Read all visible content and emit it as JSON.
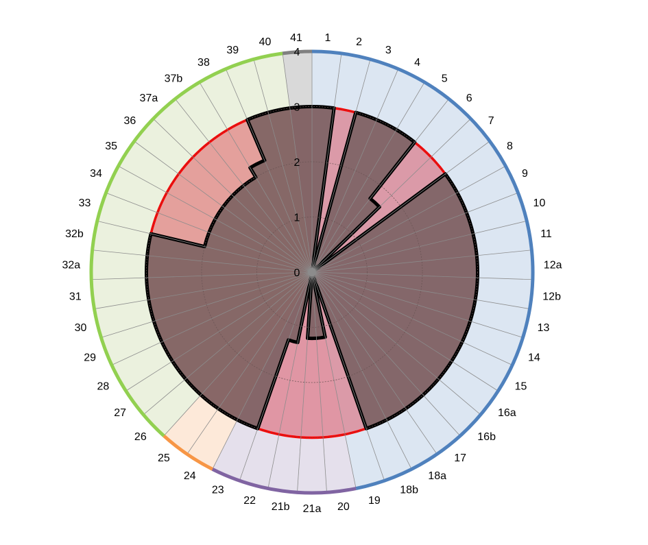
{
  "chart_data": {
    "type": "radar",
    "categories": [
      "1",
      "2",
      "3",
      "4",
      "5",
      "6",
      "7",
      "8",
      "9",
      "10",
      "11",
      "12a",
      "12b",
      "13",
      "14",
      "15",
      "16a",
      "16b",
      "17",
      "18a",
      "18b",
      "19",
      "20",
      "21a",
      "21b",
      "22",
      "23",
      "24",
      "25",
      "26",
      "27",
      "28",
      "29",
      "30",
      "31",
      "32a",
      "32b",
      "33",
      "34",
      "35",
      "36",
      "37a",
      "37b",
      "38",
      "39",
      "40",
      "41"
    ],
    "radial_ticks": [
      "0",
      "1",
      "2",
      "3",
      "4"
    ],
    "rlim": [
      0,
      4
    ],
    "sectors": [
      {
        "color": "#4f81bd",
        "fill": "#dce6f2",
        "start": "1",
        "end": "19"
      },
      {
        "color": "#8064a2",
        "fill": "#e5e0ec",
        "start": "20",
        "end": "23"
      },
      {
        "color": "#f79646",
        "fill": "#fde9d9",
        "start": "24",
        "end": "25"
      },
      {
        "color": "#92d050",
        "fill": "#ebf1de",
        "start": "26",
        "end": "40"
      },
      {
        "color": "#808080",
        "fill": "#d9d9d9",
        "start": "41",
        "end": "41"
      }
    ],
    "series": [
      {
        "color": "#ff0000",
        "fill": "rgba(218,41,58,0.40)",
        "values": [
          3,
          3,
          3,
          3,
          3,
          3,
          3,
          3,
          3,
          3,
          3,
          3,
          3,
          3,
          3,
          3,
          3,
          3,
          3,
          3,
          3,
          3,
          3,
          3,
          3,
          3,
          3,
          3,
          3,
          3,
          3,
          3,
          3,
          3,
          3,
          3,
          3,
          3,
          3,
          3,
          3,
          3,
          3,
          3,
          3,
          3,
          3
        ]
      },
      {
        "color": "#000000",
        "fill": "rgba(110,90,90,0.80)",
        "values": [
          3,
          0,
          3,
          3,
          3,
          1.7,
          0,
          3,
          3,
          3,
          3,
          3,
          3,
          3,
          3,
          3,
          3,
          3,
          3,
          3,
          3,
          0,
          1.2,
          1.2,
          0,
          1.3,
          3,
          3,
          3,
          3,
          3,
          3,
          3,
          3,
          3,
          3,
          3,
          2,
          2,
          2,
          2,
          2,
          2,
          2.2,
          3,
          3,
          3
        ]
      }
    ]
  }
}
